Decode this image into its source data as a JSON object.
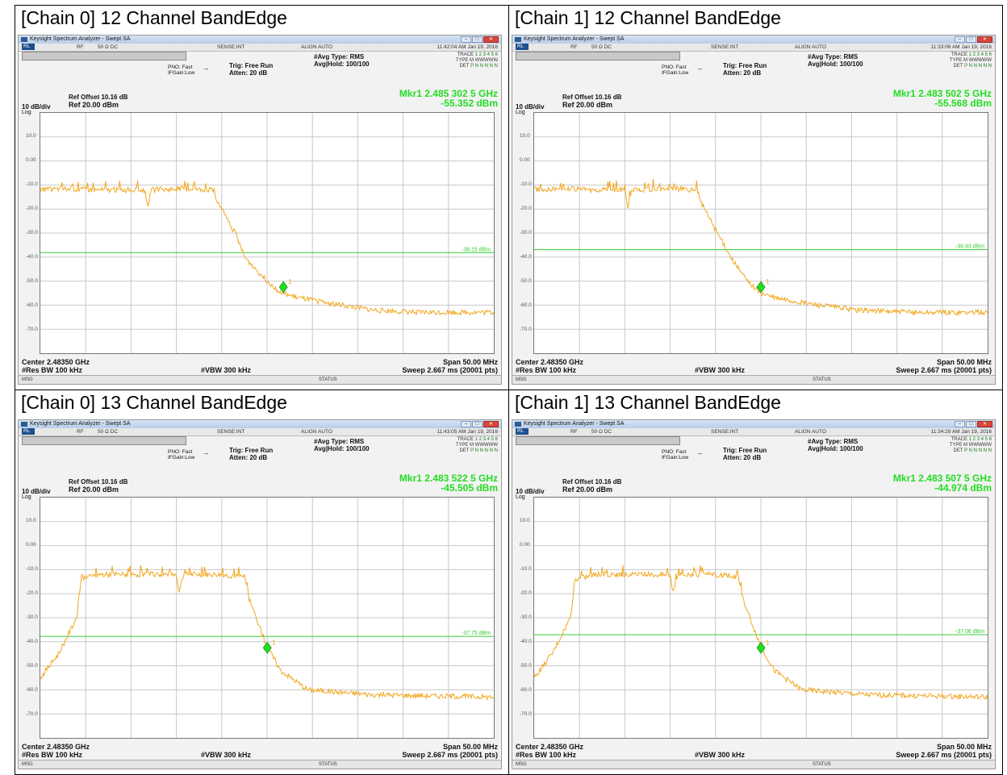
{
  "common": {
    "app_title": "Keysight Spectrum Analyzer - Swept SA",
    "status_rl": "RL",
    "status_rf": "RF",
    "status_ohm": "50 Ω  DC",
    "status_sense": "SENSE:INT",
    "status_align": "ALIGN AUTO",
    "avg_type": "#Avg Type: RMS",
    "avg_hold": "Avg|Hold: 100/100",
    "trace_label": "TRACE",
    "trace_nums": "1 2 3 4 5 6",
    "type_label": "TYPE",
    "type_val": "M WWWWW",
    "det_label": "DET",
    "det_val": "P N N N N N",
    "pno": "PNO: Fast",
    "ifgain": "IFGain:Low",
    "trig": "Trig: Free Run",
    "atten": "Atten: 20 dB",
    "ref_offset": "Ref Offset 10.16 dB",
    "scale": "10 dB/div",
    "log": "Log",
    "ref_level": "Ref 20.00 dBm",
    "center": "Center 2.48350 GHz",
    "res_bw": "#Res BW 100 kHz",
    "vbw": "#VBW 300 kHz",
    "span": "Span 50.00 MHz",
    "sweep": "Sweep  2.667 ms (20001 pts)",
    "msg": "MSG",
    "status": "STATUS",
    "y_ticks": [
      "10.0",
      "0.00",
      "-10.0",
      "-20.0",
      "-30.0",
      "-40.0",
      "-50.0",
      "-60.0",
      "-70.0"
    ]
  },
  "colors": {
    "trace": "#f2a61c",
    "limit": "#33cc33",
    "marker": "#22dd22"
  },
  "chart_data": [
    {
      "type": "line",
      "title": "[Chain 0] 12 Channel BandEdge",
      "timestamp": "11:42:04 AM Jan 19, 2016",
      "marker_freq": "Mkr1 2.485 302 5 GHz",
      "marker_level": "-55.352 dBm",
      "limit_label": "-38.15 dBm",
      "limit_dbm": -38.15,
      "marker": {
        "x_ghz": 2.4853025,
        "y_dbm": -52.5
      },
      "ylim": [
        -80,
        20
      ],
      "xlim_ghz": [
        2.4585,
        2.5085
      ],
      "series": [
        {
          "x_ghz": [
            2.4585,
            2.461,
            2.465,
            2.47,
            2.4703,
            2.4708,
            2.474,
            2.4775,
            2.478,
            2.48,
            2.481,
            2.483,
            2.485,
            2.487,
            2.49,
            2.495,
            2.5,
            2.5085
          ],
          "y_dbm": [
            -12,
            -11.5,
            -12,
            -12,
            -19,
            -12,
            -11.5,
            -12,
            -17,
            -30,
            -40,
            -48,
            -55,
            -57,
            -59,
            -62,
            -63,
            -63
          ]
        }
      ]
    },
    {
      "type": "line",
      "title": "[Chain 1] 12 Channel BandEdge",
      "timestamp": "11:33:06 AM Jan 19, 2016",
      "marker_freq": "Mkr1 2.483 502 5 GHz",
      "marker_level": "-55.568 dBm",
      "limit_label": "-36.93 dBm",
      "limit_dbm": -36.93,
      "marker": {
        "x_ghz": 2.4835025,
        "y_dbm": -52.5
      },
      "ylim": [
        -80,
        20
      ],
      "xlim_ghz": [
        2.4585,
        2.5085
      ],
      "series": [
        {
          "x_ghz": [
            2.4585,
            2.461,
            2.465,
            2.4685,
            2.4688,
            2.4693,
            2.473,
            2.4765,
            2.477,
            2.479,
            2.4805,
            2.482,
            2.4835,
            2.485,
            2.488,
            2.494,
            2.5,
            2.5085
          ],
          "y_dbm": [
            -12,
            -11.5,
            -12,
            -12,
            -19,
            -12,
            -11.5,
            -12,
            -18,
            -32,
            -42,
            -50,
            -55,
            -57,
            -59,
            -62,
            -63,
            -63
          ]
        }
      ]
    },
    {
      "type": "line",
      "title": "[Chain 0] 13 Channel BandEdge",
      "timestamp": "11:43:05 AM Jan 19, 2016",
      "marker_freq": "Mkr1 2.483 522 5 GHz",
      "marker_level": "-45.505 dBm",
      "limit_label": "-37.75 dBm",
      "limit_dbm": -37.75,
      "marker": {
        "x_ghz": 2.4835225,
        "y_dbm": -42.5
      },
      "ylim": [
        -80,
        20
      ],
      "xlim_ghz": [
        2.4585,
        2.5085
      ],
      "series": [
        {
          "x_ghz": [
            2.4585,
            2.4605,
            2.4625,
            2.463,
            2.465,
            2.47,
            2.4735,
            2.4738,
            2.4743,
            2.478,
            2.481,
            2.4815,
            2.4825,
            2.4835,
            2.485,
            2.488,
            2.495,
            2.5085
          ],
          "y_dbm": [
            -55,
            -45,
            -30,
            -14,
            -12,
            -12,
            -12,
            -19,
            -12,
            -12,
            -13,
            -22,
            -32,
            -42,
            -52,
            -60,
            -62,
            -63
          ]
        }
      ]
    },
    {
      "type": "line",
      "title": "[Chain 1] 13 Channel BandEdge",
      "timestamp": "11:34:29 AM Jan 19, 2016",
      "marker_freq": "Mkr1 2.483 507 5 GHz",
      "marker_level": "-44.974 dBm",
      "limit_label": "-37.06 dBm",
      "limit_dbm": -37.06,
      "marker": {
        "x_ghz": 2.4835075,
        "y_dbm": -42.5
      },
      "ylim": [
        -80,
        20
      ],
      "xlim_ghz": [
        2.4585,
        2.5085
      ],
      "series": [
        {
          "x_ghz": [
            2.4585,
            2.4605,
            2.4625,
            2.463,
            2.465,
            2.47,
            2.4735,
            2.4738,
            2.4743,
            2.478,
            2.481,
            2.4815,
            2.4825,
            2.4835,
            2.485,
            2.488,
            2.495,
            2.5085
          ],
          "y_dbm": [
            -55,
            -45,
            -30,
            -14,
            -12,
            -12,
            -12,
            -19,
            -12,
            -12,
            -13,
            -22,
            -32,
            -42,
            -52,
            -60,
            -62,
            -63
          ]
        }
      ]
    }
  ]
}
